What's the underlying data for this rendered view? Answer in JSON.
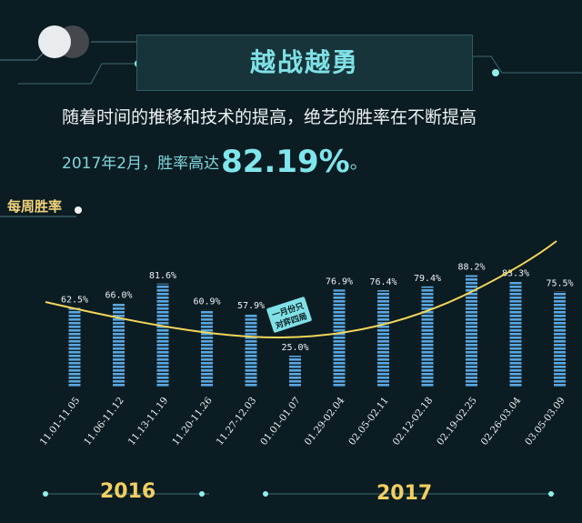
{
  "header": {
    "title": "越战越勇",
    "subtitle": "随着时间的推移和技术的提高，绝艺的胜率在不断提高",
    "highlight_prefix": "2017年2月，胜率高达",
    "highlight_value": "82.19%",
    "highlight_suffix": "。"
  },
  "section_label": "每周胜率",
  "annotation": {
    "line1": "一月份只",
    "line2": "对弈四局"
  },
  "years": {
    "left": "2016",
    "right": "2017"
  },
  "colors": {
    "bar": "#5aa6df",
    "trend": "#f3d65b",
    "accent": "#7fe1e6",
    "background": "#0b1c22"
  },
  "chart_data": {
    "type": "bar",
    "ylim": [
      0,
      100
    ],
    "categories": [
      "11.01-11.05",
      "11.06-11.12",
      "11.13-11.19",
      "11.20-11.26",
      "11.27-12.03",
      "01.01-01.07",
      "01.29-02.04",
      "02.05-02.11",
      "02.12-02.18",
      "02.19-02.25",
      "02.26-03.04",
      "03.05-03.09"
    ],
    "values": [
      62.5,
      66.0,
      81.6,
      60.9,
      57.9,
      25.0,
      76.9,
      76.4,
      79.4,
      88.2,
      83.3,
      75.5
    ],
    "labels": [
      "62.5%",
      "66.0%",
      "81.6%",
      "60.9%",
      "57.9%",
      "25.0%",
      "76.9%",
      "76.4%",
      "79.4%",
      "88.2%",
      "83.3%",
      "75.5%"
    ],
    "trend_line": true
  }
}
